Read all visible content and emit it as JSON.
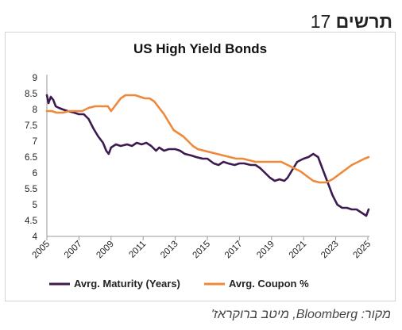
{
  "figure": {
    "label_word": "תרשים",
    "label_number": "17",
    "source": "מקור: Bloomberg, מיטב ברוקראז'"
  },
  "colors": {
    "maturity": "#3d1a4f",
    "coupon": "#f0883a",
    "axis": "#999999",
    "text": "#222222"
  },
  "chart_data": {
    "type": "line",
    "title": "US High Yield Bonds",
    "xlabel": "",
    "ylabel": "",
    "xlim": [
      2005,
      2025.1
    ],
    "ylim": [
      4,
      9
    ],
    "x_ticks": [
      2005,
      2007,
      2009,
      2011,
      2013,
      2015,
      2017,
      2019,
      2021,
      2023,
      2025
    ],
    "y_ticks": [
      4,
      4.5,
      5,
      5.5,
      6,
      6.5,
      7,
      7.5,
      8,
      8.5,
      9
    ],
    "grid": false,
    "legend_position": "bottom",
    "series": [
      {
        "name": "Avrg. Maturity (Years)",
        "color_key": "maturity",
        "points": [
          [
            2005.0,
            8.45
          ],
          [
            2005.1,
            8.2
          ],
          [
            2005.25,
            8.4
          ],
          [
            2005.4,
            8.3
          ],
          [
            2005.55,
            8.1
          ],
          [
            2005.75,
            8.05
          ],
          [
            2006.0,
            8.0
          ],
          [
            2006.3,
            7.95
          ],
          [
            2006.7,
            7.9
          ],
          [
            2007.0,
            7.85
          ],
          [
            2007.3,
            7.85
          ],
          [
            2007.6,
            7.7
          ],
          [
            2007.9,
            7.4
          ],
          [
            2008.2,
            7.15
          ],
          [
            2008.5,
            6.95
          ],
          [
            2008.7,
            6.7
          ],
          [
            2008.85,
            6.6
          ],
          [
            2009.0,
            6.8
          ],
          [
            2009.3,
            6.9
          ],
          [
            2009.6,
            6.85
          ],
          [
            2010.0,
            6.9
          ],
          [
            2010.3,
            6.85
          ],
          [
            2010.6,
            6.95
          ],
          [
            2010.9,
            6.9
          ],
          [
            2011.2,
            6.95
          ],
          [
            2011.5,
            6.85
          ],
          [
            2011.8,
            6.7
          ],
          [
            2012.0,
            6.8
          ],
          [
            2012.3,
            6.7
          ],
          [
            2012.6,
            6.75
          ],
          [
            2013.0,
            6.75
          ],
          [
            2013.3,
            6.7
          ],
          [
            2013.6,
            6.6
          ],
          [
            2014.0,
            6.55
          ],
          [
            2014.3,
            6.5
          ],
          [
            2014.7,
            6.45
          ],
          [
            2015.0,
            6.45
          ],
          [
            2015.4,
            6.3
          ],
          [
            2015.7,
            6.25
          ],
          [
            2016.0,
            6.35
          ],
          [
            2016.3,
            6.3
          ],
          [
            2016.7,
            6.25
          ],
          [
            2017.0,
            6.3
          ],
          [
            2017.3,
            6.3
          ],
          [
            2017.7,
            6.25
          ],
          [
            2018.0,
            6.25
          ],
          [
            2018.3,
            6.15
          ],
          [
            2018.6,
            6.0
          ],
          [
            2018.9,
            5.85
          ],
          [
            2019.2,
            5.75
          ],
          [
            2019.5,
            5.8
          ],
          [
            2019.8,
            5.75
          ],
          [
            2020.0,
            5.85
          ],
          [
            2020.3,
            6.1
          ],
          [
            2020.6,
            6.35
          ],
          [
            2021.0,
            6.45
          ],
          [
            2021.3,
            6.5
          ],
          [
            2021.6,
            6.6
          ],
          [
            2021.9,
            6.5
          ],
          [
            2022.2,
            6.1
          ],
          [
            2022.5,
            5.7
          ],
          [
            2022.8,
            5.3
          ],
          [
            2023.1,
            5.0
          ],
          [
            2023.4,
            4.9
          ],
          [
            2023.7,
            4.9
          ],
          [
            2024.0,
            4.85
          ],
          [
            2024.3,
            4.85
          ],
          [
            2024.6,
            4.75
          ],
          [
            2024.9,
            4.65
          ],
          [
            2025.05,
            4.85
          ]
        ]
      },
      {
        "name": "Avrg. Coupon %",
        "color_key": "coupon",
        "points": [
          [
            2005.0,
            7.95
          ],
          [
            2005.3,
            7.95
          ],
          [
            2005.6,
            7.9
          ],
          [
            2006.0,
            7.9
          ],
          [
            2006.4,
            7.95
          ],
          [
            2006.8,
            7.95
          ],
          [
            2007.2,
            7.95
          ],
          [
            2007.6,
            8.05
          ],
          [
            2008.0,
            8.1
          ],
          [
            2008.4,
            8.1
          ],
          [
            2008.8,
            8.1
          ],
          [
            2009.0,
            7.95
          ],
          [
            2009.3,
            8.15
          ],
          [
            2009.6,
            8.35
          ],
          [
            2009.9,
            8.45
          ],
          [
            2010.2,
            8.45
          ],
          [
            2010.5,
            8.45
          ],
          [
            2010.8,
            8.4
          ],
          [
            2011.1,
            8.35
          ],
          [
            2011.4,
            8.35
          ],
          [
            2011.7,
            8.25
          ],
          [
            2012.0,
            8.05
          ],
          [
            2012.3,
            7.85
          ],
          [
            2012.6,
            7.6
          ],
          [
            2012.9,
            7.35
          ],
          [
            2013.2,
            7.25
          ],
          [
            2013.5,
            7.15
          ],
          [
            2013.8,
            7.0
          ],
          [
            2014.1,
            6.85
          ],
          [
            2014.4,
            6.75
          ],
          [
            2014.8,
            6.7
          ],
          [
            2015.2,
            6.65
          ],
          [
            2015.6,
            6.6
          ],
          [
            2016.0,
            6.55
          ],
          [
            2016.4,
            6.5
          ],
          [
            2016.8,
            6.45
          ],
          [
            2017.2,
            6.45
          ],
          [
            2017.6,
            6.4
          ],
          [
            2018.0,
            6.35
          ],
          [
            2018.4,
            6.35
          ],
          [
            2018.8,
            6.35
          ],
          [
            2019.2,
            6.35
          ],
          [
            2019.6,
            6.35
          ],
          [
            2020.0,
            6.25
          ],
          [
            2020.4,
            6.15
          ],
          [
            2020.8,
            6.05
          ],
          [
            2021.2,
            5.9
          ],
          [
            2021.6,
            5.75
          ],
          [
            2022.0,
            5.7
          ],
          [
            2022.4,
            5.7
          ],
          [
            2022.8,
            5.8
          ],
          [
            2023.2,
            5.95
          ],
          [
            2023.6,
            6.1
          ],
          [
            2024.0,
            6.25
          ],
          [
            2024.4,
            6.35
          ],
          [
            2024.8,
            6.45
          ],
          [
            2025.05,
            6.5
          ]
        ]
      }
    ]
  }
}
